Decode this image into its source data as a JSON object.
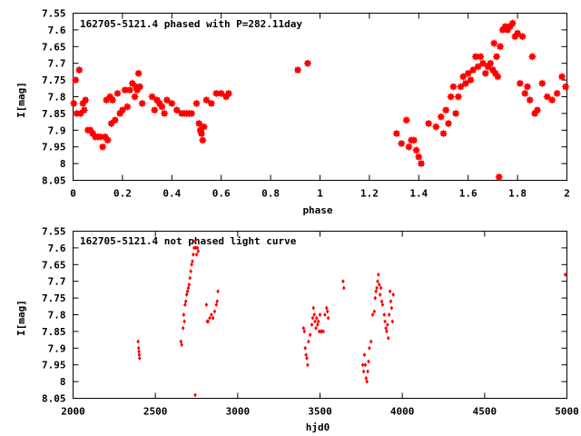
{
  "chart_data": [
    {
      "type": "scatter",
      "title": "162705-5121.4 phased with P=282.11day",
      "xlabel": "phase",
      "ylabel": "I[mag]",
      "xlim": [
        0,
        2
      ],
      "ylim": [
        7.55,
        8.05
      ],
      "y_inverted": true,
      "grid": false,
      "marker_color": "#ff0000",
      "xticks": [
        "0",
        "0.2",
        "0.4",
        "0.6",
        "0.8",
        "1",
        "1.2",
        "1.4",
        "1.6",
        "1.8",
        "2"
      ],
      "yticks": [
        "7.55",
        "7.6",
        "7.65",
        "7.7",
        "7.75",
        "7.8",
        "7.85",
        "7.9",
        "7.95",
        "8",
        "8.05"
      ],
      "series": [
        {
          "points": [
            [
              0.003,
              7.82
            ],
            [
              0.01,
              7.75
            ],
            [
              0.015,
              7.85
            ],
            [
              0.025,
              7.72
            ],
            [
              0.03,
              7.85
            ],
            [
              0.04,
              7.82
            ],
            [
              0.045,
              7.84
            ],
            [
              0.05,
              7.81
            ],
            [
              0.06,
              7.9
            ],
            [
              0.07,
              7.9
            ],
            [
              0.08,
              7.91
            ],
            [
              0.09,
              7.92
            ],
            [
              0.1,
              7.92
            ],
            [
              0.11,
              7.92
            ],
            [
              0.12,
              7.95
            ],
            [
              0.13,
              7.92
            ],
            [
              0.135,
              7.81
            ],
            [
              0.14,
              7.93
            ],
            [
              0.15,
              7.8
            ],
            [
              0.155,
              7.88
            ],
            [
              0.16,
              7.81
            ],
            [
              0.17,
              7.87
            ],
            [
              0.18,
              7.79
            ],
            [
              0.19,
              7.85
            ],
            [
              0.2,
              7.84
            ],
            [
              0.21,
              7.78
            ],
            [
              0.22,
              7.83
            ],
            [
              0.23,
              7.78
            ],
            [
              0.24,
              7.76
            ],
            [
              0.25,
              7.8
            ],
            [
              0.255,
              7.77
            ],
            [
              0.26,
              7.78
            ],
            [
              0.265,
              7.73
            ],
            [
              0.27,
              7.77
            ],
            [
              0.28,
              7.82
            ],
            [
              0.32,
              7.8
            ],
            [
              0.33,
              7.84
            ],
            [
              0.34,
              7.81
            ],
            [
              0.35,
              7.82
            ],
            [
              0.36,
              7.83
            ],
            [
              0.37,
              7.85
            ],
            [
              0.38,
              7.81
            ],
            [
              0.4,
              7.82
            ],
            [
              0.42,
              7.84
            ],
            [
              0.44,
              7.85
            ],
            [
              0.45,
              7.85
            ],
            [
              0.46,
              7.85
            ],
            [
              0.47,
              7.85
            ],
            [
              0.48,
              7.85
            ],
            [
              0.5,
              7.82
            ],
            [
              0.51,
              7.88
            ],
            [
              0.515,
              7.9
            ],
            [
              0.52,
              7.91
            ],
            [
              0.525,
              7.93
            ],
            [
              0.53,
              7.89
            ],
            [
              0.54,
              7.81
            ],
            [
              0.56,
              7.82
            ],
            [
              0.58,
              7.79
            ],
            [
              0.6,
              7.79
            ],
            [
              0.62,
              7.8
            ],
            [
              0.63,
              7.79
            ],
            [
              0.91,
              7.72
            ],
            [
              0.95,
              7.7
            ],
            [
              1.31,
              7.91
            ],
            [
              1.33,
              7.94
            ],
            [
              1.35,
              7.87
            ],
            [
              1.36,
              7.95
            ],
            [
              1.37,
              7.93
            ],
            [
              1.38,
              7.93
            ],
            [
              1.39,
              7.96
            ],
            [
              1.4,
              7.98
            ],
            [
              1.41,
              8.0
            ],
            [
              1.44,
              7.88
            ],
            [
              1.47,
              7.89
            ],
            [
              1.49,
              7.86
            ],
            [
              1.5,
              7.91
            ],
            [
              1.51,
              7.84
            ],
            [
              1.52,
              7.88
            ],
            [
              1.53,
              7.8
            ],
            [
              1.54,
              7.77
            ],
            [
              1.55,
              7.85
            ],
            [
              1.56,
              7.8
            ],
            [
              1.57,
              7.77
            ],
            [
              1.58,
              7.74
            ],
            [
              1.59,
              7.76
            ],
            [
              1.6,
              7.73
            ],
            [
              1.61,
              7.75
            ],
            [
              1.62,
              7.72
            ],
            [
              1.63,
              7.68
            ],
            [
              1.64,
              7.71
            ],
            [
              1.65,
              7.68
            ],
            [
              1.66,
              7.7
            ],
            [
              1.67,
              7.73
            ],
            [
              1.68,
              7.71
            ],
            [
              1.69,
              7.7
            ],
            [
              1.7,
              7.72
            ],
            [
              1.705,
              7.64
            ],
            [
              1.71,
              7.73
            ],
            [
              1.715,
              7.68
            ],
            [
              1.72,
              7.74
            ],
            [
              1.725,
              8.04
            ],
            [
              1.73,
              7.65
            ],
            [
              1.74,
              7.6
            ],
            [
              1.75,
              7.59
            ],
            [
              1.76,
              7.6
            ],
            [
              1.77,
              7.59
            ],
            [
              1.78,
              7.58
            ],
            [
              1.79,
              7.62
            ],
            [
              1.8,
              7.61
            ],
            [
              1.81,
              7.76
            ],
            [
              1.82,
              7.62
            ],
            [
              1.83,
              7.79
            ],
            [
              1.84,
              7.77
            ],
            [
              1.85,
              7.81
            ],
            [
              1.86,
              7.68
            ],
            [
              1.87,
              7.85
            ],
            [
              1.88,
              7.84
            ],
            [
              1.9,
              7.76
            ],
            [
              1.92,
              7.8
            ],
            [
              1.94,
              7.81
            ],
            [
              1.96,
              7.79
            ],
            [
              1.98,
              7.74
            ],
            [
              1.995,
              7.77
            ]
          ]
        }
      ]
    },
    {
      "type": "scatter",
      "title": "162705-5121.4 not phased light curve",
      "xlabel": "hjd0",
      "ylabel": "I[mag]",
      "xlim": [
        2000,
        5000
      ],
      "ylim": [
        7.55,
        8.05
      ],
      "y_inverted": true,
      "grid": false,
      "marker_color": "#ff0000",
      "xticks": [
        "2000",
        "2500",
        "3000",
        "3500",
        "4000",
        "4500",
        "5000"
      ],
      "yticks": [
        "7.55",
        "7.6",
        "7.65",
        "7.7",
        "7.75",
        "7.8",
        "7.85",
        "7.9",
        "7.95",
        "8",
        "8.05"
      ],
      "series": [
        {
          "points": [
            [
              2395,
              7.88
            ],
            [
              2398,
              7.9
            ],
            [
              2400,
              7.91
            ],
            [
              2402,
              7.92
            ],
            [
              2404,
              7.93
            ],
            [
              2655,
              7.88
            ],
            [
              2660,
              7.89
            ],
            [
              2668,
              7.84
            ],
            [
              2672,
              7.8
            ],
            [
              2676,
              7.82
            ],
            [
              2680,
              7.77
            ],
            [
              2685,
              7.76
            ],
            [
              2690,
              7.74
            ],
            [
              2695,
              7.73
            ],
            [
              2700,
              7.72
            ],
            [
              2705,
              7.71
            ],
            [
              2710,
              7.69
            ],
            [
              2715,
              7.67
            ],
            [
              2720,
              7.65
            ],
            [
              2725,
              7.64
            ],
            [
              2730,
              7.62
            ],
            [
              2735,
              7.6
            ],
            [
              2740,
              7.58
            ],
            [
              2745,
              7.6
            ],
            [
              2750,
              7.62
            ],
            [
              2755,
              7.6
            ],
            [
              2760,
              7.61
            ],
            [
              2742,
              8.04
            ],
            [
              2810,
              7.77
            ],
            [
              2815,
              7.82
            ],
            [
              2820,
              7.82
            ],
            [
              2830,
              7.81
            ],
            [
              2840,
              7.8
            ],
            [
              2850,
              7.81
            ],
            [
              2860,
              7.79
            ],
            [
              2870,
              7.77
            ],
            [
              2875,
              7.76
            ],
            [
              2880,
              7.73
            ],
            [
              3400,
              7.84
            ],
            [
              3405,
              7.85
            ],
            [
              3410,
              7.9
            ],
            [
              3415,
              7.92
            ],
            [
              3420,
              7.93
            ],
            [
              3425,
              7.95
            ],
            [
              3430,
              7.88
            ],
            [
              3440,
              7.86
            ],
            [
              3450,
              7.83
            ],
            [
              3455,
              7.81
            ],
            [
              3460,
              7.78
            ],
            [
              3465,
              7.8
            ],
            [
              3470,
              7.82
            ],
            [
              3475,
              7.84
            ],
            [
              3480,
              7.81
            ],
            [
              3485,
              7.83
            ],
            [
              3490,
              7.82
            ],
            [
              3495,
              7.85
            ],
            [
              3500,
              7.8
            ],
            [
              3505,
              7.85
            ],
            [
              3510,
              7.85
            ],
            [
              3520,
              7.85
            ],
            [
              3530,
              7.8
            ],
            [
              3540,
              7.78
            ],
            [
              3545,
              7.79
            ],
            [
              3550,
              7.81
            ],
            [
              3640,
              7.7
            ],
            [
              3645,
              7.72
            ],
            [
              3760,
              7.95
            ],
            [
              3765,
              7.97
            ],
            [
              3770,
              7.92
            ],
            [
              3775,
              7.95
            ],
            [
              3780,
              7.99
            ],
            [
              3785,
              8.0
            ],
            [
              3790,
              7.97
            ],
            [
              3795,
              7.94
            ],
            [
              3800,
              7.9
            ],
            [
              3810,
              7.88
            ],
            [
              3820,
              7.8
            ],
            [
              3830,
              7.79
            ],
            [
              3835,
              7.75
            ],
            [
              3840,
              7.73
            ],
            [
              3845,
              7.72
            ],
            [
              3850,
              7.7
            ],
            [
              3855,
              7.68
            ],
            [
              3860,
              7.71
            ],
            [
              3865,
              7.74
            ],
            [
              3870,
              7.72
            ],
            [
              3875,
              7.76
            ],
            [
              3880,
              7.77
            ],
            [
              3890,
              7.8
            ],
            [
              3895,
              7.82
            ],
            [
              3900,
              7.84
            ],
            [
              3905,
              7.85
            ],
            [
              3910,
              7.83
            ],
            [
              3915,
              7.87
            ],
            [
              3920,
              7.8
            ],
            [
              3925,
              7.73
            ],
            [
              3930,
              7.76
            ],
            [
              3935,
              7.78
            ],
            [
              3940,
              7.82
            ],
            [
              3945,
              7.74
            ],
            [
              4990,
              7.68
            ]
          ]
        }
      ]
    }
  ]
}
